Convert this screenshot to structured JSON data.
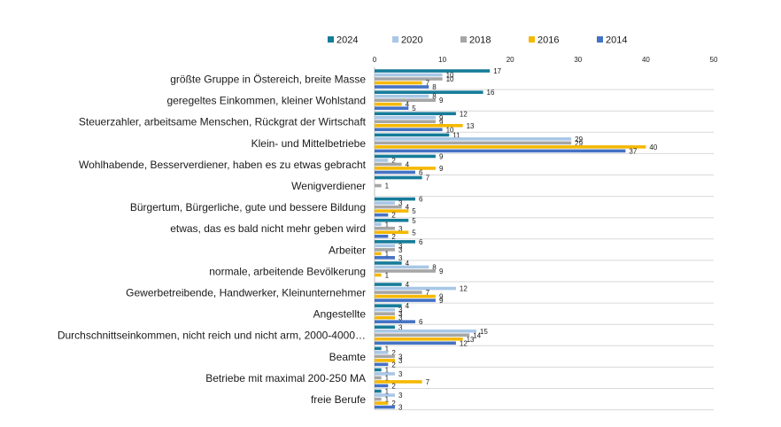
{
  "chart_data": {
    "type": "bar",
    "orientation": "horizontal",
    "title": "",
    "xlabel": "",
    "ylabel": "",
    "xlim": [
      0,
      50
    ],
    "x_ticks": [
      0,
      10,
      20,
      30,
      40,
      50
    ],
    "x_axis_position": "top",
    "grid": false,
    "legend_position": "top",
    "categories": [
      "größte Gruppe in Östereich, breite Masse",
      "geregeltes Einkommen, kleiner Wohlstand",
      "Steuerzahler, arbeitsame Menschen, Rückgrat der Wirtschaft",
      "Klein- und Mittelbetriebe",
      "Wohlhabende, Besserverdiener, haben es zu etwas gebracht",
      "Wenigverdiener",
      "Bürgertum, Bürgerliche, gute und bessere Bildung",
      "etwas, das es bald nicht mehr geben wird",
      "Arbeiter",
      "normale, arbeitende Bevölkerung",
      "Gewerbetreibende, Handwerker, Kleinunternehmer",
      "Angestellte",
      "Durchschnittseinkommen, nicht reich und nicht arm, 2000-4000…",
      "Beamte",
      "Betriebe mit maximal 200-250 MA",
      "freie Berufe"
    ],
    "series": [
      {
        "name": "2024",
        "color": "#167c99",
        "values": [
          17,
          16,
          12,
          11,
          9,
          7,
          6,
          5,
          6,
          4,
          4,
          4,
          3,
          1,
          1,
          1
        ]
      },
      {
        "name": "2020",
        "color": "#a9c7e6",
        "values": [
          10,
          8,
          9,
          29,
          2,
          null,
          3,
          1,
          3,
          8,
          12,
          3,
          15,
          2,
          3,
          3
        ]
      },
      {
        "name": "2018",
        "color": "#a6a6a6",
        "values": [
          10,
          9,
          9,
          29,
          4,
          1,
          4,
          3,
          3,
          9,
          7,
          3,
          14,
          3,
          1,
          1
        ]
      },
      {
        "name": "2016",
        "color": "#f5b800",
        "values": [
          7,
          4,
          13,
          40,
          9,
          null,
          5,
          5,
          1,
          1,
          9,
          3,
          13,
          3,
          7,
          2
        ]
      },
      {
        "name": "2014",
        "color": "#4472c4",
        "values": [
          8,
          5,
          10,
          37,
          6,
          null,
          2,
          2,
          3,
          null,
          9,
          6,
          12,
          2,
          2,
          3
        ]
      }
    ]
  }
}
